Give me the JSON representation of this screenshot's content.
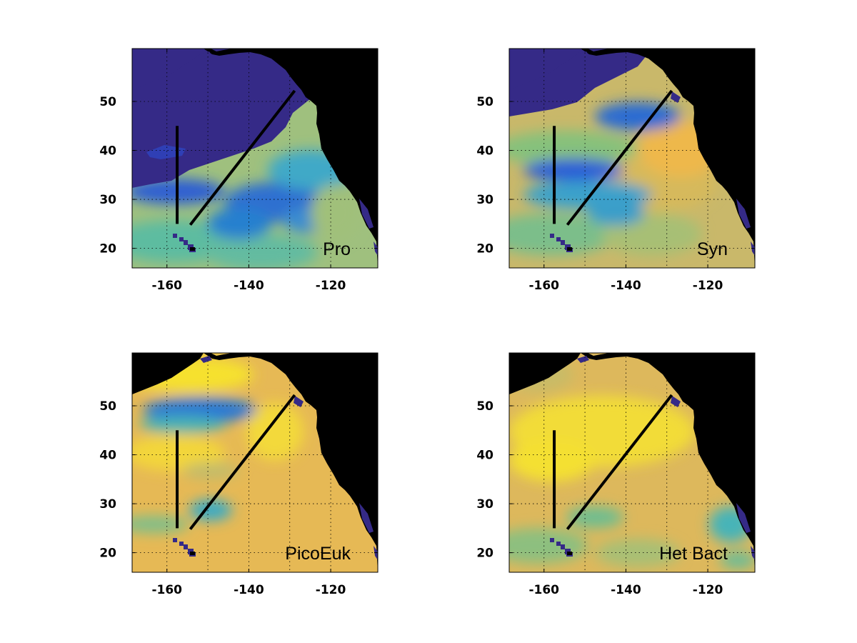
{
  "figure": {
    "panels": [
      {
        "label": "Pro",
        "colors": {
          "ocean": "#9fc07e",
          "pattern": "pro"
        }
      },
      {
        "label": "Syn",
        "colors": {
          "ocean": "#c9b86a",
          "pattern": "syn"
        }
      },
      {
        "label": "PicoEuk",
        "colors": {
          "ocean": "#e6b955",
          "pattern": "pico"
        }
      },
      {
        "label": "Het Bact",
        "colors": {
          "ocean": "#ddb85c",
          "pattern": "het"
        }
      }
    ],
    "x_ticks": [
      "-160",
      "-140",
      "-120"
    ],
    "y_ticks": [
      "20",
      "30",
      "40",
      "50"
    ],
    "colors": {
      "land": "#000000",
      "deep_blue": "#352a87",
      "blue": "#1d5bd6",
      "cyan": "#21a8c4",
      "teal": "#4cb9a3",
      "green": "#92bf73",
      "orange": "#f0b84a",
      "yellow": "#f7e82e",
      "track": "#000000"
    }
  }
}
